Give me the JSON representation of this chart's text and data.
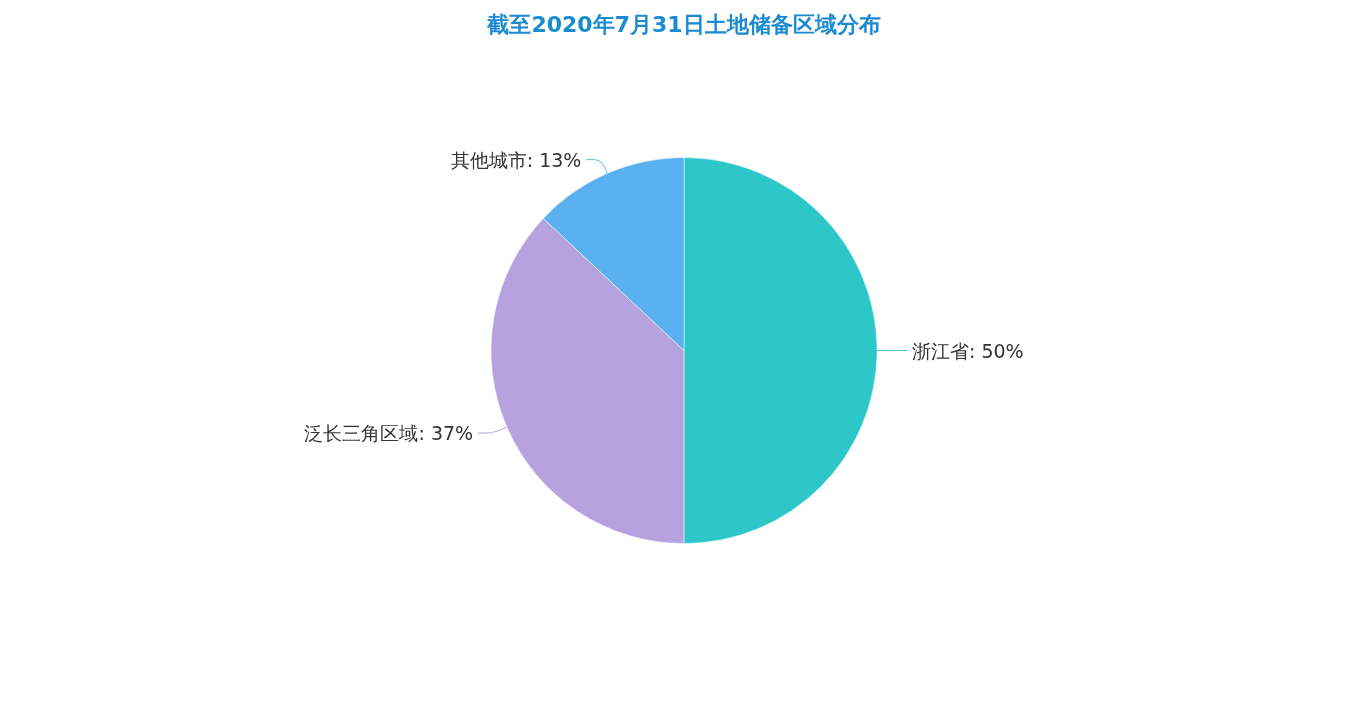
{
  "chart_data": {
    "type": "pie",
    "title": "截至2020年7月31日土地储备区域分布",
    "categories": [
      "浙江省",
      "泛长三角区域",
      "其他城市"
    ],
    "values": [
      50,
      37,
      13
    ],
    "value_labels": [
      ": 50%",
      ": 37%",
      ": 13%"
    ],
    "colors": [
      "#2ec7c9",
      "#b6a2de",
      "#5ab1ef"
    ],
    "data_labels": true,
    "legend": false
  }
}
